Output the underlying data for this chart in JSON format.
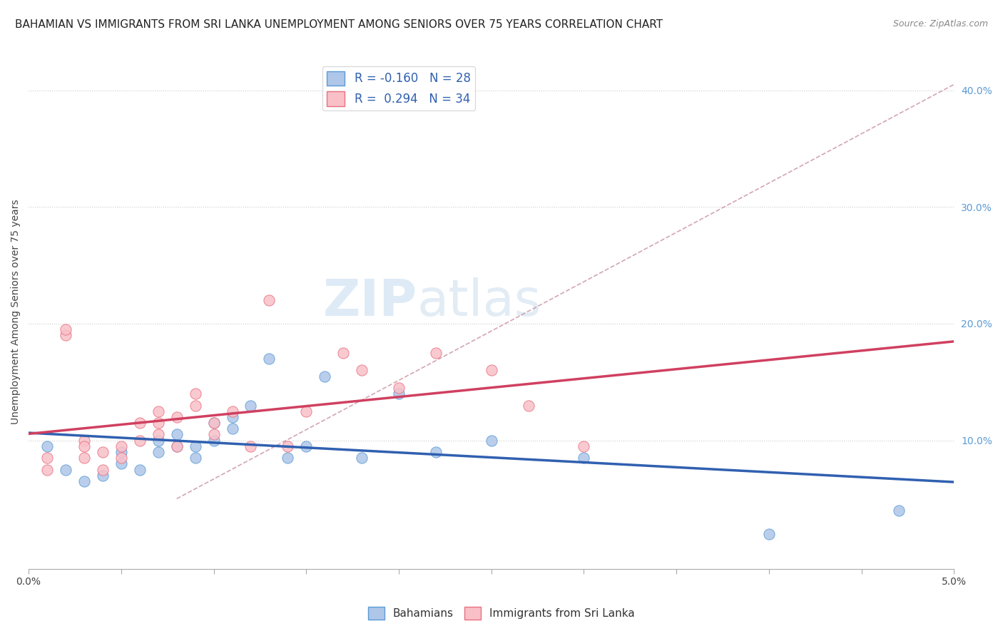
{
  "title": "BAHAMIAN VS IMMIGRANTS FROM SRI LANKA UNEMPLOYMENT AMONG SENIORS OVER 75 YEARS CORRELATION CHART",
  "source": "Source: ZipAtlas.com",
  "ylabel": "Unemployment Among Seniors over 75 years",
  "y_tick_labels": [
    "10.0%",
    "20.0%",
    "30.0%",
    "40.0%"
  ],
  "y_tick_values": [
    0.1,
    0.2,
    0.3,
    0.4
  ],
  "x_range": [
    0.0,
    0.05
  ],
  "y_range": [
    -0.01,
    0.43
  ],
  "bahamian_color": "#aec6e8",
  "bahamian_edge_color": "#5b9bd5",
  "srilanka_color": "#f9c0c8",
  "srilanka_edge_color": "#e87080",
  "bahamian_line_color": "#3060b0",
  "srilanka_line_color": "#d04060",
  "dash_line_color": "#d0a0a8",
  "blue_scatter_x": [
    0.001,
    0.002,
    0.003,
    0.004,
    0.005,
    0.005,
    0.006,
    0.007,
    0.007,
    0.008,
    0.008,
    0.009,
    0.009,
    0.01,
    0.01,
    0.011,
    0.011,
    0.012,
    0.013,
    0.014,
    0.015,
    0.016,
    0.018,
    0.02,
    0.022,
    0.025,
    0.03,
    0.04,
    0.047
  ],
  "blue_scatter_y": [
    0.095,
    0.075,
    0.065,
    0.07,
    0.09,
    0.08,
    0.075,
    0.1,
    0.09,
    0.105,
    0.095,
    0.085,
    0.095,
    0.115,
    0.1,
    0.12,
    0.11,
    0.13,
    0.17,
    0.085,
    0.095,
    0.155,
    0.085,
    0.14,
    0.09,
    0.1,
    0.085,
    0.02,
    0.04
  ],
  "pink_scatter_x": [
    0.001,
    0.001,
    0.002,
    0.002,
    0.003,
    0.003,
    0.003,
    0.004,
    0.004,
    0.005,
    0.005,
    0.006,
    0.006,
    0.007,
    0.007,
    0.007,
    0.008,
    0.008,
    0.009,
    0.009,
    0.01,
    0.01,
    0.011,
    0.012,
    0.013,
    0.014,
    0.015,
    0.017,
    0.018,
    0.02,
    0.022,
    0.025,
    0.027,
    0.03
  ],
  "pink_scatter_y": [
    0.085,
    0.075,
    0.19,
    0.195,
    0.1,
    0.085,
    0.095,
    0.075,
    0.09,
    0.085,
    0.095,
    0.1,
    0.115,
    0.125,
    0.105,
    0.115,
    0.095,
    0.12,
    0.14,
    0.13,
    0.115,
    0.105,
    0.125,
    0.095,
    0.22,
    0.095,
    0.125,
    0.175,
    0.16,
    0.145,
    0.175,
    0.16,
    0.13,
    0.095
  ],
  "title_fontsize": 11,
  "source_fontsize": 9,
  "watermark_zip": "ZIP",
  "watermark_atlas": "atlas"
}
